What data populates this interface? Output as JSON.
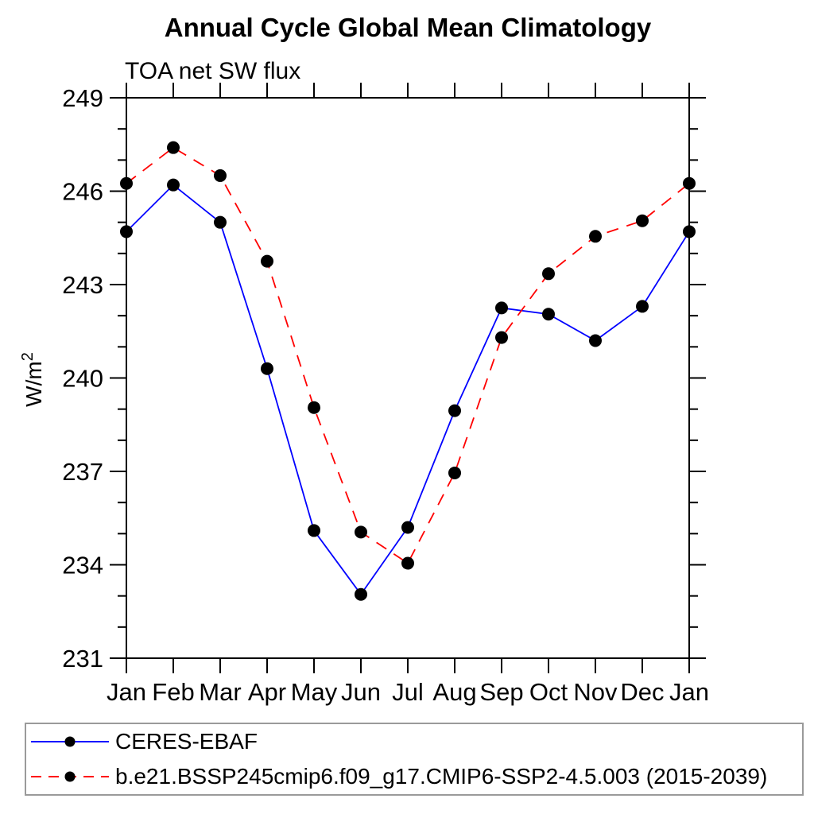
{
  "chart_data": {
    "type": "line",
    "title": "Annual Cycle Global Mean Climatology",
    "subtitle": "TOA net SW flux",
    "ylabel": "W/m²",
    "ylabel_base": "W/m",
    "ylabel_sup": "2",
    "x_categories": [
      "Jan",
      "Feb",
      "Mar",
      "Apr",
      "May",
      "Jun",
      "Jul",
      "Aug",
      "Sep",
      "Oct",
      "Nov",
      "Dec",
      "Jan"
    ],
    "ylim": [
      231,
      249
    ],
    "y_major_ticks": [
      231,
      234,
      237,
      240,
      243,
      246,
      249
    ],
    "y_minor_step": 1,
    "grid": false,
    "legend_position": "bottom-left",
    "axis_color": "#000000",
    "marker_color": "#000000",
    "series": [
      {
        "name": "CERES-EBAF",
        "color": "#0000ff",
        "style": "solid",
        "marker": "circle",
        "values": [
          244.7,
          246.2,
          245.0,
          240.3,
          235.1,
          233.05,
          235.2,
          238.95,
          242.25,
          242.05,
          241.2,
          242.3,
          244.7
        ]
      },
      {
        "name": "b.e21.BSSP245cmip6.f09_g17.CMIP6-SSP2-4.5.003 (2015-2039)",
        "color": "#ff0000",
        "style": "dashed",
        "marker": "circle",
        "values": [
          246.25,
          247.4,
          246.5,
          243.75,
          239.05,
          235.05,
          234.05,
          236.95,
          241.3,
          243.35,
          244.55,
          245.05,
          246.25
        ]
      }
    ]
  }
}
